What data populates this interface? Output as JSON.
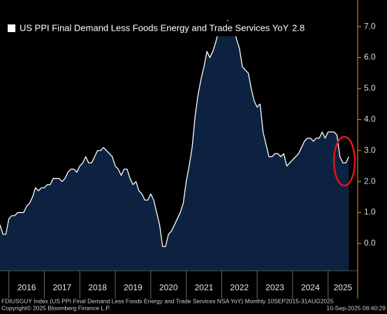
{
  "chart_data": {
    "type": "area",
    "title": "US PPI Final Demand Less Foods Energy and Trade Services YoY",
    "footer_left": "FDIUSGUY Index (US PPI Final Demand Less Foods Energy and Trade Services NSA YoY) Monthly 10SEP2015-31AUG2025",
    "copyright": "Copyright© 2025 Bloomberg Finance L.P.",
    "timestamp": "10-Sep-2025 08:40:29",
    "x": [
      "2015-09",
      "2015-10",
      "2015-11",
      "2015-12",
      "2016-01",
      "2016-02",
      "2016-03",
      "2016-04",
      "2016-05",
      "2016-06",
      "2016-07",
      "2016-08",
      "2016-09",
      "2016-10",
      "2016-11",
      "2016-12",
      "2017-01",
      "2017-02",
      "2017-03",
      "2017-04",
      "2017-05",
      "2017-06",
      "2017-07",
      "2017-08",
      "2017-09",
      "2017-10",
      "2017-11",
      "2017-12",
      "2018-01",
      "2018-02",
      "2018-03",
      "2018-04",
      "2018-05",
      "2018-06",
      "2018-07",
      "2018-08",
      "2018-09",
      "2018-10",
      "2018-11",
      "2018-12",
      "2019-01",
      "2019-02",
      "2019-03",
      "2019-04",
      "2019-05",
      "2019-06",
      "2019-07",
      "2019-08",
      "2019-09",
      "2019-10",
      "2019-11",
      "2019-12",
      "2020-01",
      "2020-02",
      "2020-03",
      "2020-04",
      "2020-05",
      "2020-06",
      "2020-07",
      "2020-08",
      "2020-09",
      "2020-10",
      "2020-11",
      "2020-12",
      "2021-01",
      "2021-02",
      "2021-03",
      "2021-04",
      "2021-05",
      "2021-06",
      "2021-07",
      "2021-08",
      "2021-09",
      "2021-10",
      "2021-11",
      "2021-12",
      "2022-01",
      "2022-02",
      "2022-03",
      "2022-04",
      "2022-05",
      "2022-06",
      "2022-07",
      "2022-08",
      "2022-09",
      "2022-10",
      "2022-11",
      "2022-12",
      "2023-01",
      "2023-02",
      "2023-03",
      "2023-04",
      "2023-05",
      "2023-06",
      "2023-07",
      "2023-08",
      "2023-09",
      "2023-10",
      "2023-11",
      "2023-12",
      "2024-01",
      "2024-02",
      "2024-03",
      "2024-04",
      "2024-05",
      "2024-06",
      "2024-07",
      "2024-08",
      "2024-09",
      "2024-10",
      "2024-11",
      "2024-12",
      "2025-01",
      "2025-02",
      "2025-03",
      "2025-04",
      "2025-05",
      "2025-06",
      "2025-07",
      "2025-08"
    ],
    "series": [
      {
        "name": "US PPI Final Demand Less Foods Energy and Trade Services YoY",
        "color": "#ffffff",
        "fill": "#0c2240",
        "values": [
          0.5,
          0.6,
          0.3,
          0.3,
          0.8,
          0.9,
          0.9,
          1.0,
          1.0,
          1.0,
          1.2,
          1.3,
          1.5,
          1.8,
          1.7,
          1.8,
          1.8,
          1.9,
          1.9,
          2.1,
          2.1,
          2.1,
          2.0,
          2.1,
          2.3,
          2.4,
          2.4,
          2.3,
          2.5,
          2.6,
          2.8,
          2.6,
          2.6,
          2.8,
          3.0,
          3.0,
          3.1,
          3.0,
          2.9,
          2.8,
          2.5,
          2.4,
          2.2,
          2.4,
          2.4,
          2.1,
          1.9,
          2.0,
          1.7,
          1.6,
          1.4,
          1.4,
          1.6,
          1.4,
          1.0,
          0.6,
          -0.1,
          -0.1,
          0.3,
          0.4,
          0.6,
          0.8,
          1.0,
          1.3,
          2.0,
          2.5,
          3.1,
          4.1,
          4.8,
          5.3,
          5.7,
          6.2,
          6.0,
          6.2,
          6.5,
          6.9,
          7.1,
          6.9,
          7.2,
          7.0,
          7.0,
          6.6,
          6.3,
          5.7,
          5.6,
          5.5,
          5.0,
          4.6,
          4.4,
          4.5,
          3.6,
          3.2,
          2.8,
          2.8,
          2.9,
          2.9,
          2.8,
          2.9,
          2.5,
          2.6,
          2.7,
          2.8,
          2.9,
          3.1,
          3.3,
          3.4,
          3.4,
          3.3,
          3.4,
          3.4,
          3.6,
          3.4,
          3.6,
          3.6,
          3.6,
          3.5,
          2.8,
          2.6,
          2.6,
          2.8
        ]
      }
    ],
    "xlim": [
      "2015-10",
      "2025-11"
    ],
    "xticks": [
      {
        "value": "2016-01",
        "label": "2016"
      },
      {
        "value": "2017-01",
        "label": "2017"
      },
      {
        "value": "2018-01",
        "label": "2018"
      },
      {
        "value": "2019-01",
        "label": "2019"
      },
      {
        "value": "2020-01",
        "label": "2020"
      },
      {
        "value": "2021-01",
        "label": "2021"
      },
      {
        "value": "2022-01",
        "label": "2022"
      },
      {
        "value": "2023-01",
        "label": "2023"
      },
      {
        "value": "2024-01",
        "label": "2024"
      },
      {
        "value": "2025-01",
        "label": "2025"
      }
    ],
    "ylim": [
      -0.88,
      7.86
    ],
    "yticks": [
      {
        "value": 0,
        "label": "0.0"
      },
      {
        "value": 1,
        "label": "1.0"
      },
      {
        "value": 2,
        "label": "2.0"
      },
      {
        "value": 3,
        "label": "3.0"
      },
      {
        "value": 4,
        "label": "4.0"
      },
      {
        "value": 5,
        "label": "5.0"
      },
      {
        "value": 6,
        "label": "6.0"
      },
      {
        "value": 7,
        "label": "7.0"
      }
    ],
    "y_axis_side": "right",
    "axis_color": "#f39c12",
    "grid": false
  }
}
